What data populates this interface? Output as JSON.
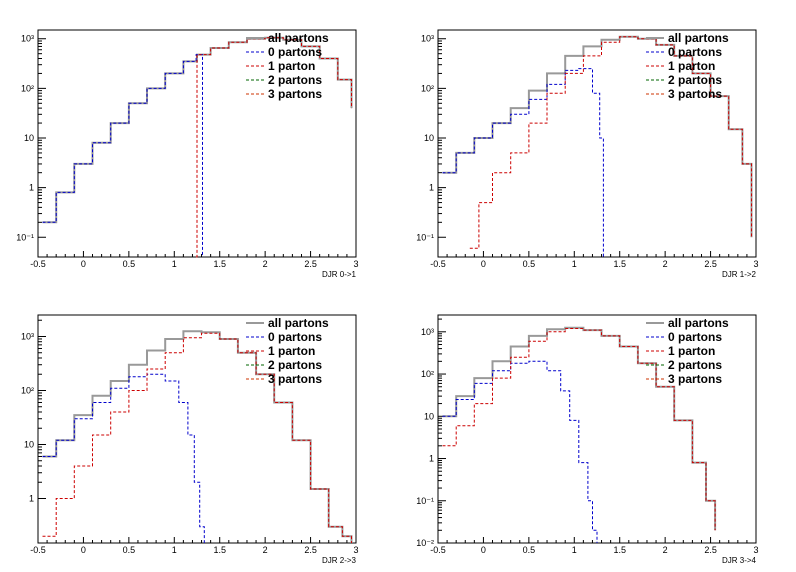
{
  "chart_data": [
    {
      "type": "line",
      "panel": "DJR 0->1",
      "xlabel": "DJR 0->1",
      "xlim": [
        -0.5,
        3
      ],
      "ylim": [
        0.04,
        1500
      ],
      "yscale": "log",
      "x_ticks": [
        "-0.5",
        "0",
        "0.5",
        "1",
        "1.5",
        "2",
        "2.5",
        "3"
      ],
      "y_ticks": [
        "10⁻¹",
        "1",
        "10",
        "10²",
        "10³"
      ],
      "legend": {
        "placement": "top-right",
        "entries": [
          "all partons",
          "0 partons",
          "1 parton",
          "2 partons",
          "3 partons"
        ]
      },
      "series": [
        {
          "name": "all partons",
          "color": "#999999",
          "x": [
            -0.45,
            -0.3,
            -0.1,
            0.1,
            0.3,
            0.5,
            0.7,
            0.9,
            1.1,
            1.25,
            1.4,
            1.6,
            1.8,
            2.0,
            2.2,
            2.4,
            2.6,
            2.8,
            2.95
          ],
          "y": [
            0.2,
            0.8,
            3,
            8,
            20,
            50,
            100,
            200,
            350,
            480,
            650,
            850,
            1000,
            1050,
            950,
            700,
            400,
            150,
            40
          ]
        },
        {
          "name": "0 partons",
          "color": "#0000cc",
          "x": [
            -0.45,
            -0.3,
            -0.1,
            0.1,
            0.3,
            0.5,
            0.7,
            0.9,
            1.1,
            1.24,
            1.29,
            1.31
          ],
          "y": [
            0.2,
            0.8,
            3,
            8,
            20,
            50,
            100,
            200,
            350,
            480,
            480,
            0.04
          ]
        },
        {
          "name": "1 parton",
          "color": "#cc0000",
          "x": [
            1.24,
            1.25,
            1.4,
            1.6,
            1.8,
            2.0,
            2.2,
            2.4,
            2.6,
            2.8,
            2.95
          ],
          "y": [
            0.04,
            480,
            650,
            850,
            1000,
            1050,
            950,
            700,
            400,
            150,
            40
          ]
        },
        {
          "name": "2 partons",
          "color": "#006600",
          "x": [],
          "y": []
        },
        {
          "name": "3 partons",
          "color": "#cc3300",
          "x": [],
          "y": []
        }
      ]
    },
    {
      "type": "line",
      "panel": "DJR 1->2",
      "xlabel": "DJR 1->2",
      "xlim": [
        -0.5,
        3
      ],
      "ylim": [
        0.04,
        1500
      ],
      "yscale": "log",
      "x_ticks": [
        "-0.5",
        "0",
        "0.5",
        "1",
        "1.5",
        "2",
        "2.5",
        "3"
      ],
      "y_ticks": [
        "10⁻¹",
        "1",
        "10",
        "10²",
        "10³"
      ],
      "legend": {
        "placement": "top-right",
        "entries": [
          "all partons",
          "0 partons",
          "1 parton",
          "2 partons",
          "3 partons"
        ]
      },
      "series": [
        {
          "name": "all partons",
          "color": "#999999",
          "x": [
            -0.45,
            -0.3,
            -0.1,
            0.1,
            0.3,
            0.5,
            0.7,
            0.9,
            1.1,
            1.3,
            1.5,
            1.7,
            1.9,
            2.1,
            2.3,
            2.5,
            2.7,
            2.85,
            2.95
          ],
          "y": [
            2,
            5,
            10,
            20,
            40,
            90,
            200,
            450,
            700,
            950,
            1100,
            1000,
            750,
            450,
            200,
            70,
            15,
            3,
            0.1
          ]
        },
        {
          "name": "0 partons",
          "color": "#0000cc",
          "x": [
            -0.45,
            -0.3,
            -0.1,
            0.1,
            0.3,
            0.5,
            0.7,
            0.9,
            1.05,
            1.2,
            1.28,
            1.32
          ],
          "y": [
            2,
            5,
            10,
            20,
            30,
            60,
            120,
            230,
            250,
            80,
            10,
            0.04
          ]
        },
        {
          "name": "1 parton",
          "color": "#cc0000",
          "x": [
            -0.15,
            -0.05,
            0.1,
            0.3,
            0.5,
            0.7,
            0.9,
            1.1,
            1.3,
            1.5,
            1.7,
            1.9,
            2.1,
            2.3,
            2.5,
            2.7,
            2.85,
            2.95
          ],
          "y": [
            0.06,
            0.5,
            2,
            5,
            20,
            80,
            200,
            450,
            850,
            1100,
            1000,
            750,
            450,
            200,
            70,
            15,
            3,
            0.1
          ]
        },
        {
          "name": "2 partons",
          "color": "#006600",
          "x": [],
          "y": []
        },
        {
          "name": "3 partons",
          "color": "#cc3300",
          "x": [],
          "y": []
        }
      ]
    },
    {
      "type": "line",
      "panel": "DJR 2->3",
      "xlabel": "DJR 2->3",
      "xlim": [
        -0.5,
        3
      ],
      "ylim": [
        0.15,
        2500
      ],
      "yscale": "log",
      "x_ticks": [
        "-0.5",
        "0",
        "0.5",
        "1",
        "1.5",
        "2",
        "2.5",
        "3"
      ],
      "y_ticks": [
        "1",
        "10",
        "10²",
        "10³"
      ],
      "legend": {
        "placement": "top-right",
        "entries": [
          "all partons",
          "0 partons",
          "1 parton",
          "2 partons",
          "3 partons"
        ]
      },
      "series": [
        {
          "name": "all partons",
          "color": "#999999",
          "x": [
            -0.45,
            -0.3,
            -0.1,
            0.1,
            0.3,
            0.5,
            0.7,
            0.9,
            1.1,
            1.3,
            1.5,
            1.7,
            1.9,
            2.1,
            2.3,
            2.5,
            2.7,
            2.85,
            2.95
          ],
          "y": [
            6,
            12,
            35,
            80,
            150,
            300,
            550,
            900,
            1250,
            1200,
            900,
            500,
            200,
            60,
            12,
            1.5,
            0.3,
            0.2,
            0.15
          ]
        },
        {
          "name": "0 partons",
          "color": "#0000cc",
          "x": [
            -0.45,
            -0.3,
            -0.1,
            0.1,
            0.3,
            0.5,
            0.7,
            0.9,
            1.05,
            1.15,
            1.22,
            1.28,
            1.33
          ],
          "y": [
            6,
            12,
            30,
            60,
            110,
            180,
            200,
            150,
            60,
            15,
            2,
            0.3,
            0.15
          ]
        },
        {
          "name": "1 parton",
          "color": "#cc0000",
          "x": [
            -0.45,
            -0.3,
            -0.1,
            0.1,
            0.3,
            0.5,
            0.7,
            0.9,
            1.1,
            1.3,
            1.5,
            1.7,
            1.9,
            2.1,
            2.3,
            2.5,
            2.7,
            2.85,
            2.95
          ],
          "y": [
            0.2,
            1,
            4,
            15,
            40,
            100,
            250,
            500,
            950,
            1150,
            900,
            500,
            200,
            60,
            12,
            1.5,
            0.3,
            0.2,
            0.15
          ]
        },
        {
          "name": "2 partons",
          "color": "#006600",
          "x": [],
          "y": []
        },
        {
          "name": "3 partons",
          "color": "#cc3300",
          "x": [],
          "y": []
        }
      ]
    },
    {
      "type": "line",
      "panel": "DJR 3->4",
      "xlabel": "DJR 3->4",
      "xlim": [
        -0.5,
        3
      ],
      "ylim": [
        0.01,
        2500
      ],
      "yscale": "log",
      "x_ticks": [
        "-0.5",
        "0",
        "0.5",
        "1",
        "1.5",
        "2",
        "2.5",
        "3"
      ],
      "y_ticks": [
        "10⁻²",
        "10⁻¹",
        "1",
        "10",
        "10²",
        "10³"
      ],
      "legend": {
        "placement": "top-right",
        "entries": [
          "all partons",
          "0 partons",
          "1 parton",
          "2 partons",
          "3 partons"
        ]
      },
      "series": [
        {
          "name": "all partons",
          "color": "#999999",
          "x": [
            -0.45,
            -0.3,
            -0.1,
            0.1,
            0.3,
            0.5,
            0.7,
            0.9,
            1.1,
            1.3,
            1.5,
            1.7,
            1.9,
            2.1,
            2.3,
            2.45,
            2.55
          ],
          "y": [
            10,
            30,
            80,
            200,
            450,
            800,
            1150,
            1250,
            1100,
            800,
            450,
            180,
            50,
            8,
            0.8,
            0.1,
            0.02
          ]
        },
        {
          "name": "0 partons",
          "color": "#0000cc",
          "x": [
            -0.45,
            -0.3,
            -0.1,
            0.1,
            0.3,
            0.5,
            0.7,
            0.85,
            0.95,
            1.05,
            1.15,
            1.2,
            1.25
          ],
          "y": [
            10,
            25,
            60,
            120,
            180,
            200,
            120,
            40,
            8,
            0.8,
            0.1,
            0.02,
            0.01
          ]
        },
        {
          "name": "1 parton",
          "color": "#cc0000",
          "x": [
            -0.45,
            -0.3,
            -0.1,
            0.1,
            0.3,
            0.5,
            0.7,
            0.9,
            1.1,
            1.3,
            1.5,
            1.7,
            1.9,
            2.1,
            2.3,
            2.45,
            2.55
          ],
          "y": [
            2,
            6,
            20,
            80,
            250,
            600,
            1000,
            1200,
            1100,
            800,
            450,
            180,
            50,
            8,
            0.8,
            0.1,
            0.02
          ]
        },
        {
          "name": "2 partons",
          "color": "#006600",
          "x": [],
          "y": []
        },
        {
          "name": "3 partons",
          "color": "#cc3300",
          "x": [],
          "y": []
        }
      ]
    }
  ]
}
